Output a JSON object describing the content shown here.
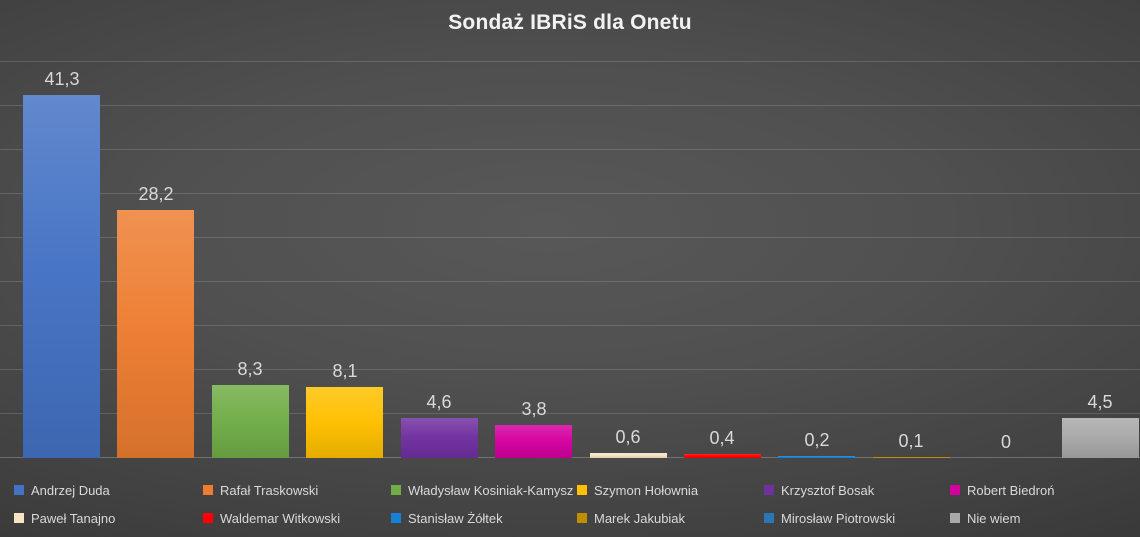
{
  "title": "Sondaż IBRiS dla Onetu",
  "chart_data": {
    "type": "bar",
    "title": "Sondaż IBRiS dla Onetu",
    "categories": [
      "Andrzej Duda",
      "Rafał Traskowski",
      "Władysław Kosiniak-Kamysz",
      "Szymon Hołownia",
      "Krzysztof Bosak",
      "Robert Biedroń",
      "Paweł Tanajno",
      "Waldemar Witkowski",
      "Stanisław Żółtek",
      "Marek Jakubiak",
      "Mirosław Piotrowski",
      "Nie wiem"
    ],
    "values": [
      41.3,
      28.2,
      8.3,
      8.1,
      4.6,
      3.8,
      0.6,
      0.4,
      0.2,
      0.1,
      0,
      4.5
    ],
    "value_labels": [
      "41,3",
      "28,2",
      "8,3",
      "8,1",
      "4,6",
      "3,8",
      "0,6",
      "0,4",
      "0,2",
      "0,1",
      "0",
      "4,5"
    ],
    "bar_colors": [
      "#4472C4",
      "#ED7D31",
      "#70AD47",
      "#FFC000",
      "#7030A0",
      "#D4009F",
      "#F8E3C2",
      "#FE0000",
      "#1581D8",
      "#BF8F00",
      "#2E75B6",
      "#A9A9A9"
    ],
    "xlabel": "",
    "ylabel": "",
    "ylim": [
      0,
      45
    ],
    "gridline_step": 5,
    "grid": true,
    "legend_position": "bottom",
    "legend_rows": 2,
    "legend_items_per_row": 6
  },
  "colors": {
    "background_center": "#585858",
    "background_edge": "#2B2B2B",
    "label_text": "#D9D9D9",
    "title_text": "#F2F2F2"
  }
}
